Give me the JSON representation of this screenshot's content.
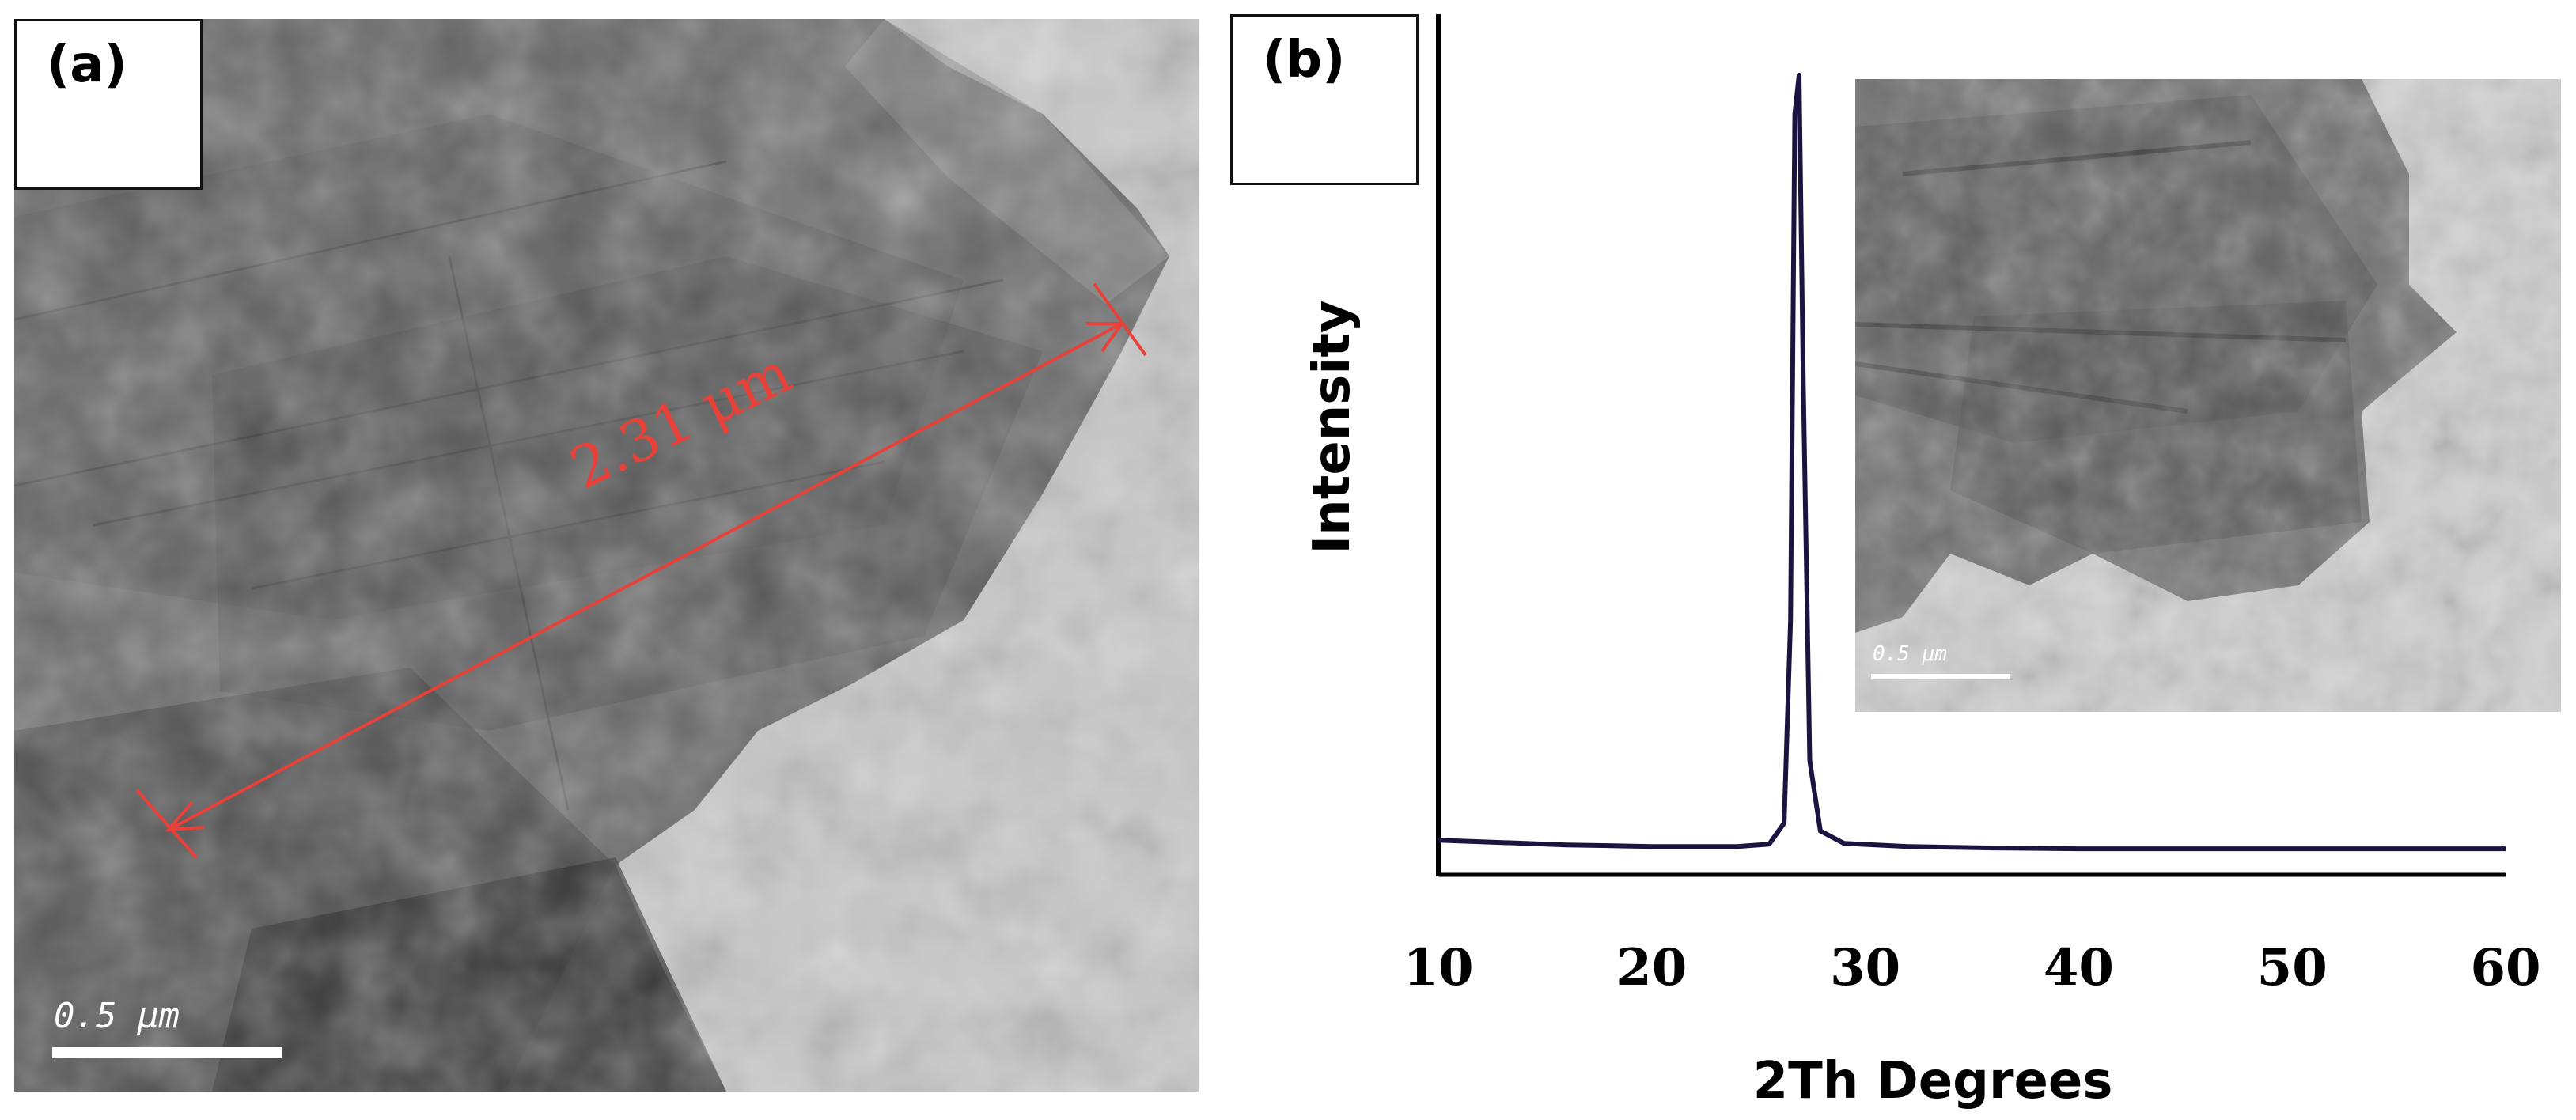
{
  "panel_a": {
    "label": "(a)",
    "measurement": "2.31 μm",
    "scale_bar": "0.5 μm",
    "measure_color": "#e8413a"
  },
  "panel_b": {
    "label": "(b)",
    "inset_scale_bar": "0.5 μm"
  },
  "chart_data": {
    "type": "line",
    "title": "",
    "xlabel": "2Th Degrees",
    "ylabel": "Intensity",
    "xlim": [
      10,
      60
    ],
    "xticks": [
      10,
      20,
      30,
      40,
      50,
      60
    ],
    "yticks": [],
    "grid": false,
    "line_color": "#1a1440",
    "series": [
      {
        "x": [
          10,
          12,
          16,
          20,
          24,
          25.5,
          26.2,
          26.5,
          26.7,
          26.9,
          27.1,
          27.4,
          27.9,
          29,
          32,
          36,
          40,
          45,
          50,
          55,
          60
        ],
        "values": [
          1.8,
          1.6,
          1.2,
          1.0,
          1.0,
          1.3,
          4,
          30,
          95,
          100,
          60,
          12,
          3,
          1.4,
          1.0,
          0.8,
          0.7,
          0.7,
          0.7,
          0.7,
          0.7
        ]
      }
    ]
  }
}
